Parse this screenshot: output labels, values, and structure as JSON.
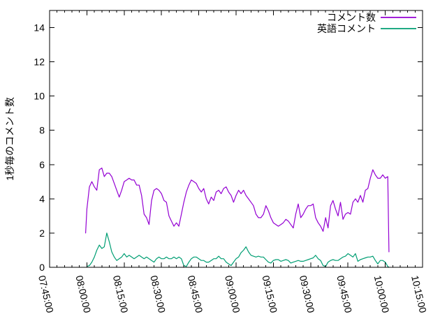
{
  "chart_data": {
    "type": "line",
    "title": "",
    "xlabel": "",
    "ylabel": "1秒毎のコメント数",
    "background_color": "#ffffff",
    "axis_color": "#000000",
    "grid": false,
    "legend_position": "top-right-inside",
    "ylim": [
      0,
      15
    ],
    "ytick_values": [
      0,
      2,
      4,
      6,
      8,
      10,
      12,
      14
    ],
    "xlim": [
      "07:45:00",
      "10:15:00"
    ],
    "xtick_labels": [
      "07:45:00",
      "08:00:00",
      "08:15:00",
      "08:30:00",
      "08:45:00",
      "09:00:00",
      "09:15:00",
      "09:30:00",
      "09:45:00",
      "10:00:00",
      "10:15:00"
    ],
    "xtick_minor_interval_minutes": 3,
    "xtick_rotation_deg": 77,
    "series": [
      {
        "name": "コメント数",
        "slug": "comment-count",
        "color": "#9400d3",
        "x": [
          "07:59:30",
          "08:00:00",
          "08:01:00",
          "08:02:00",
          "08:03:00",
          "08:04:00",
          "08:05:00",
          "08:06:00",
          "08:07:00",
          "08:08:00",
          "08:09:00",
          "08:10:00",
          "08:11:00",
          "08:12:00",
          "08:13:00",
          "08:14:00",
          "08:15:00",
          "08:16:00",
          "08:17:00",
          "08:18:00",
          "08:19:00",
          "08:20:00",
          "08:21:00",
          "08:22:00",
          "08:23:00",
          "08:24:00",
          "08:25:00",
          "08:26:00",
          "08:27:00",
          "08:28:00",
          "08:29:00",
          "08:30:00",
          "08:31:00",
          "08:32:00",
          "08:33:00",
          "08:34:00",
          "08:35:00",
          "08:36:00",
          "08:37:00",
          "08:38:00",
          "08:39:00",
          "08:40:00",
          "08:41:00",
          "08:42:00",
          "08:43:00",
          "08:44:00",
          "08:45:00",
          "08:46:00",
          "08:47:00",
          "08:48:00",
          "08:49:00",
          "08:50:00",
          "08:51:00",
          "08:52:00",
          "08:53:00",
          "08:54:00",
          "08:55:00",
          "08:56:00",
          "08:57:00",
          "08:58:00",
          "08:59:00",
          "09:00:00",
          "09:01:00",
          "09:02:00",
          "09:03:00",
          "09:04:00",
          "09:05:00",
          "09:06:00",
          "09:07:00",
          "09:08:00",
          "09:09:00",
          "09:10:00",
          "09:11:00",
          "09:12:00",
          "09:13:00",
          "09:14:00",
          "09:15:00",
          "09:16:00",
          "09:17:00",
          "09:18:00",
          "09:19:00",
          "09:20:00",
          "09:21:00",
          "09:22:00",
          "09:23:00",
          "09:24:00",
          "09:25:00",
          "09:26:00",
          "09:27:00",
          "09:28:00",
          "09:29:00",
          "09:30:00",
          "09:31:00",
          "09:32:00",
          "09:33:00",
          "09:34:00",
          "09:35:00",
          "09:36:00",
          "09:37:00",
          "09:38:00",
          "09:39:00",
          "09:40:00",
          "09:41:00",
          "09:42:00",
          "09:43:00",
          "09:44:00",
          "09:45:00",
          "09:46:00",
          "09:47:00",
          "09:48:00",
          "09:49:00",
          "09:50:00",
          "09:51:00",
          "09:52:00",
          "09:53:00",
          "09:54:00",
          "09:55:00",
          "09:56:00",
          "09:57:00",
          "09:58:00",
          "09:59:00",
          "10:00:00",
          "10:01:00",
          "10:01:30"
        ],
        "values": [
          2.0,
          3.4,
          4.7,
          5.0,
          4.7,
          4.5,
          5.7,
          5.8,
          5.3,
          5.5,
          5.5,
          5.3,
          4.9,
          4.5,
          4.1,
          4.5,
          5.0,
          5.1,
          5.2,
          5.1,
          5.1,
          4.8,
          4.8,
          4.2,
          3.1,
          2.9,
          2.5,
          3.9,
          4.5,
          4.6,
          4.5,
          4.3,
          3.9,
          3.8,
          3.0,
          2.7,
          2.4,
          2.6,
          2.4,
          3.1,
          3.8,
          4.4,
          4.8,
          5.1,
          5.0,
          4.9,
          4.6,
          4.4,
          4.6,
          4.0,
          3.7,
          4.1,
          3.9,
          4.4,
          4.5,
          4.3,
          4.6,
          4.7,
          4.4,
          4.2,
          3.8,
          4.2,
          4.5,
          4.3,
          4.5,
          4.2,
          4.0,
          3.8,
          3.6,
          3.1,
          2.9,
          2.9,
          3.1,
          3.6,
          3.3,
          2.9,
          2.6,
          2.5,
          2.4,
          2.5,
          2.6,
          2.8,
          2.7,
          2.5,
          2.3,
          3.1,
          3.7,
          2.9,
          3.1,
          3.4,
          3.6,
          3.6,
          3.7,
          2.9,
          2.6,
          2.4,
          2.1,
          2.9,
          2.3,
          3.6,
          3.9,
          3.4,
          3.0,
          3.8,
          2.8,
          3.1,
          3.2,
          3.1,
          3.8,
          4.0,
          3.8,
          4.2,
          3.8,
          4.5,
          4.6,
          5.2,
          5.7,
          5.4,
          5.2,
          5.2,
          5.4,
          5.2,
          5.3,
          0.9
        ]
      },
      {
        "name": "英語コメント",
        "slug": "english-comments",
        "color": "#009e73",
        "x": [
          "08:00:00",
          "08:01:00",
          "08:02:00",
          "08:03:00",
          "08:04:00",
          "08:05:00",
          "08:06:00",
          "08:07:00",
          "08:08:00",
          "08:09:00",
          "08:10:00",
          "08:11:00",
          "08:12:00",
          "08:13:00",
          "08:14:00",
          "08:15:00",
          "08:16:00",
          "08:17:00",
          "08:18:00",
          "08:19:00",
          "08:20:00",
          "08:21:00",
          "08:22:00",
          "08:23:00",
          "08:24:00",
          "08:25:00",
          "08:26:00",
          "08:27:00",
          "08:28:00",
          "08:29:00",
          "08:30:00",
          "08:31:00",
          "08:32:00",
          "08:33:00",
          "08:34:00",
          "08:35:00",
          "08:36:00",
          "08:37:00",
          "08:38:00",
          "08:39:00",
          "08:40:00",
          "08:41:00",
          "08:42:00",
          "08:43:00",
          "08:44:00",
          "08:45:00",
          "08:46:00",
          "08:47:00",
          "08:48:00",
          "08:49:00",
          "08:50:00",
          "08:51:00",
          "08:52:00",
          "08:53:00",
          "08:54:00",
          "08:55:00",
          "08:56:00",
          "08:57:00",
          "08:58:00",
          "08:59:00",
          "09:00:00",
          "09:01:00",
          "09:02:00",
          "09:03:00",
          "09:04:00",
          "09:05:00",
          "09:06:00",
          "09:07:00",
          "09:08:00",
          "09:09:00",
          "09:10:00",
          "09:11:00",
          "09:12:00",
          "09:13:00",
          "09:14:00",
          "09:15:00",
          "09:16:00",
          "09:17:00",
          "09:18:00",
          "09:19:00",
          "09:20:00",
          "09:21:00",
          "09:22:00",
          "09:23:00",
          "09:24:00",
          "09:25:00",
          "09:26:00",
          "09:27:00",
          "09:28:00",
          "09:29:00",
          "09:30:00",
          "09:31:00",
          "09:32:00",
          "09:33:00",
          "09:34:00",
          "09:35:00",
          "09:36:00",
          "09:37:00",
          "09:38:00",
          "09:39:00",
          "09:40:00",
          "09:41:00",
          "09:42:00",
          "09:43:00",
          "09:44:00",
          "09:45:00",
          "09:46:00",
          "09:47:00",
          "09:48:00",
          "09:49:00",
          "09:50:00",
          "09:51:00",
          "09:52:00",
          "09:53:00",
          "09:54:00",
          "09:55:00",
          "09:56:00",
          "09:57:00",
          "09:58:00",
          "09:59:00",
          "10:00:00",
          "10:01:00",
          "10:01:30"
        ],
        "values": [
          0.05,
          0.1,
          0.3,
          0.6,
          1.0,
          1.3,
          1.1,
          1.2,
          2.0,
          1.5,
          0.9,
          0.6,
          0.4,
          0.5,
          0.6,
          0.8,
          0.6,
          0.7,
          0.6,
          0.5,
          0.6,
          0.7,
          0.6,
          0.5,
          0.6,
          0.5,
          0.4,
          0.3,
          0.5,
          0.6,
          0.5,
          0.5,
          0.6,
          0.5,
          0.5,
          0.6,
          0.5,
          0.6,
          0.5,
          0.1,
          0.05,
          0.3,
          0.5,
          0.6,
          0.6,
          0.5,
          0.4,
          0.4,
          0.3,
          0.3,
          0.4,
          0.5,
          0.5,
          0.65,
          0.5,
          0.5,
          0.3,
          0.2,
          0.1,
          0.3,
          0.5,
          0.6,
          0.85,
          1.0,
          1.2,
          0.9,
          0.7,
          0.65,
          0.6,
          0.65,
          0.6,
          0.6,
          0.45,
          0.3,
          0.25,
          0.4,
          0.45,
          0.45,
          0.35,
          0.4,
          0.45,
          0.4,
          0.25,
          0.3,
          0.35,
          0.4,
          0.35,
          0.35,
          0.4,
          0.45,
          0.5,
          0.55,
          0.7,
          0.5,
          0.4,
          0.1,
          0.05,
          0.3,
          0.4,
          0.45,
          0.4,
          0.4,
          0.5,
          0.6,
          0.65,
          0.8,
          0.7,
          0.6,
          0.8,
          0.35,
          0.45,
          0.5,
          0.55,
          0.6,
          0.6,
          0.65,
          0.4,
          0.2,
          0.4,
          0.4,
          0.3,
          0.05,
          0.0
        ]
      }
    ]
  }
}
